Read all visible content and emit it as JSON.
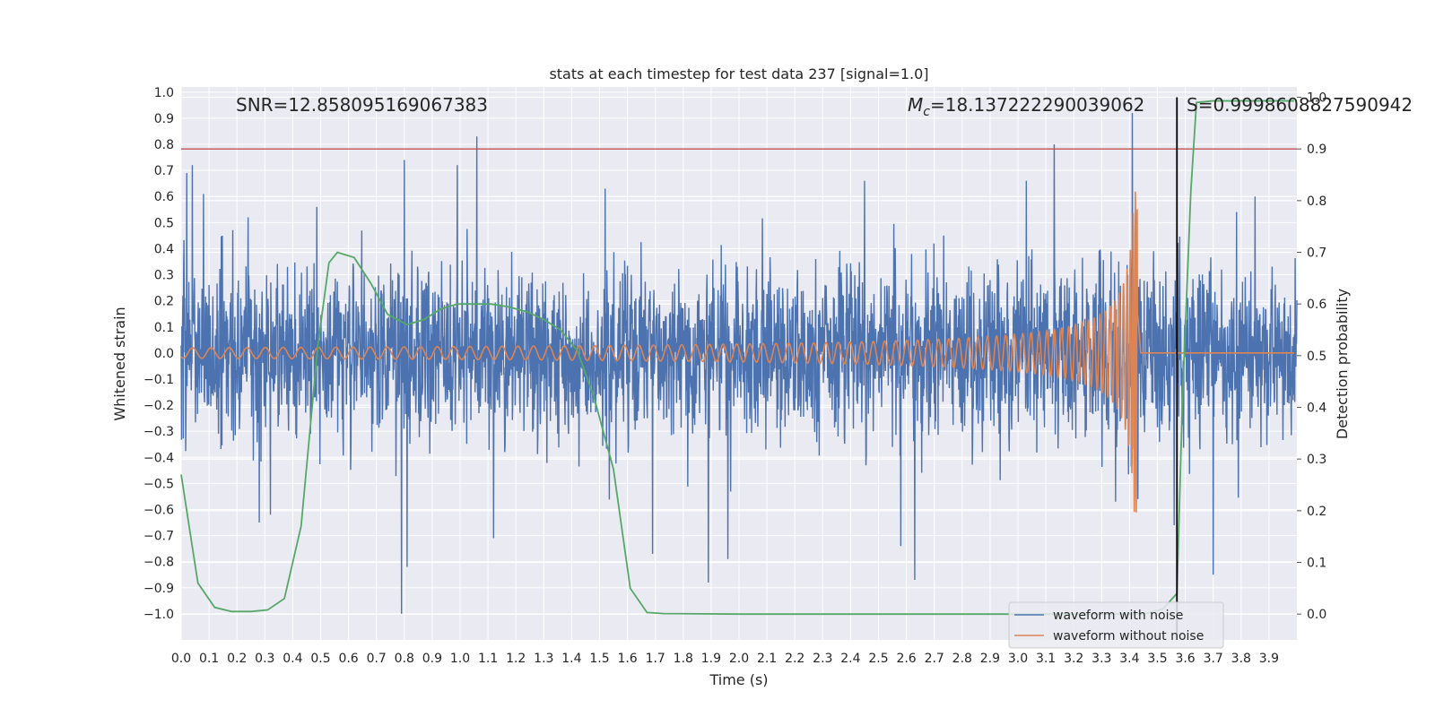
{
  "chart_data": {
    "type": "line",
    "title": "stats at each timestep for test data 237 [signal=1.0]",
    "xlabel": "Time (s)",
    "ylabel": "Whitened strain",
    "y2label": "Detection probability",
    "xlim": [
      0.0,
      4.0
    ],
    "ylim": [
      -1.1,
      1.02
    ],
    "y2lim": [
      -0.05,
      1.02
    ],
    "xticks": [
      0.0,
      0.1,
      0.2,
      0.3,
      0.4,
      0.5,
      0.6,
      0.7,
      0.8,
      0.9,
      1.0,
      1.1,
      1.2,
      1.3,
      1.4,
      1.5,
      1.6,
      1.7,
      1.8,
      1.9,
      2.0,
      2.1,
      2.2,
      2.3,
      2.4,
      2.5,
      2.6,
      2.7,
      2.8,
      2.9,
      3.0,
      3.1,
      3.2,
      3.3,
      3.4,
      3.5,
      3.6,
      3.7,
      3.8,
      3.9
    ],
    "xtick_labels": [
      "0.0",
      "0.1",
      "0.2",
      "0.3",
      "0.4",
      "0.5",
      "0.6",
      "0.7",
      "0.8",
      "0.9",
      "1.0",
      "1.1",
      "1.2",
      "1.3",
      "1.4",
      "1.5",
      "1.6",
      "1.7",
      "1.8",
      "1.9",
      "2.0",
      "2.1",
      "2.2",
      "2.3",
      "2.4",
      "2.5",
      "2.6",
      "2.7",
      "2.8",
      "2.9",
      "3.0",
      "3.1",
      "3.2",
      "3.3",
      "3.4",
      "3.5",
      "3.6",
      "3.7",
      "3.8",
      "3.9"
    ],
    "yticks": [
      1.0,
      0.9,
      0.8,
      0.7,
      0.6,
      0.5,
      0.4,
      0.3,
      0.2,
      0.1,
      0.0,
      -0.1,
      -0.2,
      -0.3,
      -0.4,
      -0.5,
      -0.6,
      -0.7,
      -0.8,
      -0.9,
      -1.0
    ],
    "ytick_labels": [
      "1.0",
      "0.9",
      "0.8",
      "0.7",
      "0.6",
      "0.5",
      "0.4",
      "0.3",
      "0.2",
      "0.1",
      "0.0",
      "−0.1",
      "−0.2",
      "−0.3",
      "−0.4",
      "−0.5",
      "−0.6",
      "−0.7",
      "−0.8",
      "−0.9",
      "−1.0"
    ],
    "y2ticks": [
      1.0,
      0.9,
      0.8,
      0.7,
      0.6,
      0.5,
      0.4,
      0.3,
      0.2,
      0.1,
      0.0
    ],
    "y2tick_labels": [
      "1.0",
      "0.9",
      "0.8",
      "0.7",
      "0.6",
      "0.5",
      "0.4",
      "0.3",
      "0.2",
      "0.1",
      "0.0"
    ],
    "grid": true,
    "legend_position": "lower-right",
    "annotations": {
      "snr": "SNR=12.858095169067383",
      "mc_symbol": "M",
      "mc_subscript": "c",
      "mc_value": "=18.137222290039062",
      "s": "S=0.9998608827590942"
    },
    "threshold_line": {
      "axis": "y2",
      "value": 0.9,
      "color": "#c44e52"
    },
    "vertical_line": {
      "x": 3.57,
      "color": "#000000"
    },
    "series": [
      {
        "name": "waveform with noise",
        "axis": "y",
        "color": "#4c72b0",
        "kind": "noise",
        "spikes": [
          [
            0.02,
            0.69
          ],
          [
            0.04,
            0.72
          ],
          [
            0.08,
            0.61
          ],
          [
            0.24,
            0.52
          ],
          [
            0.28,
            -0.65
          ],
          [
            0.32,
            -0.62
          ],
          [
            0.79,
            -1.0
          ],
          [
            0.8,
            0.74
          ],
          [
            0.81,
            -0.82
          ],
          [
            0.99,
            0.72
          ],
          [
            1.06,
            0.83
          ],
          [
            1.12,
            -0.71
          ],
          [
            1.52,
            0.63
          ],
          [
            1.69,
            -0.77
          ],
          [
            1.89,
            -0.88
          ],
          [
            1.96,
            -0.79
          ],
          [
            2.45,
            0.66
          ],
          [
            2.58,
            -0.74
          ],
          [
            2.63,
            -0.87
          ],
          [
            3.03,
            0.66
          ],
          [
            3.13,
            0.8
          ],
          [
            3.35,
            -0.57
          ],
          [
            3.41,
            0.92
          ],
          [
            3.43,
            -0.56
          ],
          [
            3.56,
            -0.66
          ],
          [
            3.7,
            -0.85
          ],
          [
            3.85,
            0.6
          ]
        ]
      },
      {
        "name": "waveform without noise",
        "axis": "y",
        "color": "#dd8452",
        "kind": "chirp",
        "t_merge": 3.43,
        "amp_start": 0.02,
        "amp_peak": 0.62
      },
      {
        "name": "",
        "axis": "y2",
        "color": "#55a868",
        "kind": "line",
        "x": [
          0.0,
          0.06,
          0.12,
          0.18,
          0.25,
          0.31,
          0.37,
          0.43,
          0.49,
          0.53,
          0.56,
          0.62,
          0.68,
          0.74,
          0.81,
          0.87,
          0.93,
          0.99,
          1.05,
          1.11,
          1.17,
          1.24,
          1.3,
          1.36,
          1.42,
          1.48,
          1.55,
          1.61,
          1.67,
          1.73,
          2.0,
          2.5,
          3.0,
          3.45,
          3.52,
          3.57,
          3.59,
          3.62,
          3.64,
          3.7,
          3.8,
          3.99
        ],
        "y": [
          0.27,
          0.06,
          0.013,
          0.005,
          0.005,
          0.008,
          0.03,
          0.17,
          0.52,
          0.68,
          0.7,
          0.69,
          0.64,
          0.58,
          0.56,
          0.57,
          0.59,
          0.6,
          0.6,
          0.6,
          0.595,
          0.585,
          0.57,
          0.55,
          0.51,
          0.42,
          0.28,
          0.05,
          0.003,
          0.001,
          0.0,
          0.0,
          0.0,
          0.0,
          0.01,
          0.04,
          0.42,
          0.82,
          0.99,
          0.993,
          0.993,
          0.993
        ]
      }
    ]
  }
}
